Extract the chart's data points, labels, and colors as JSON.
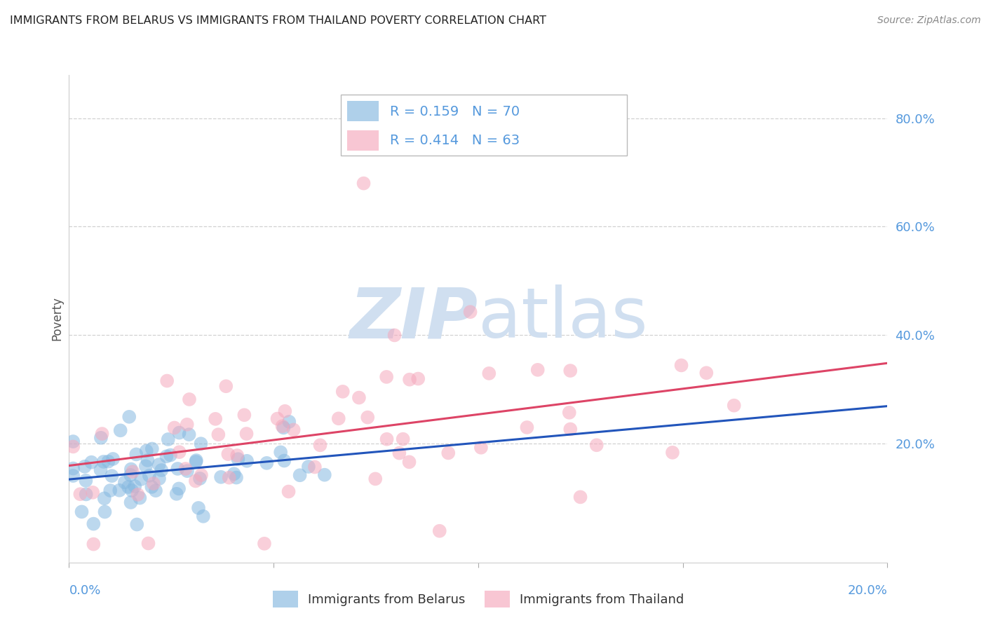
{
  "title": "IMMIGRANTS FROM BELARUS VS IMMIGRANTS FROM THAILAND POVERTY CORRELATION CHART",
  "source": "Source: ZipAtlas.com",
  "ylabel": "Poverty",
  "xlim": [
    0,
    0.2
  ],
  "ylim": [
    -0.02,
    0.88
  ],
  "grid_color": "#cccccc",
  "background_color": "#ffffff",
  "belarus_color": "#85b8e0",
  "thailand_color": "#f5a8bc",
  "belarus_line_color": "#2255bb",
  "thailand_line_color": "#dd4466",
  "belarus_R": 0.159,
  "belarus_N": 70,
  "thailand_R": 0.414,
  "thailand_N": 63,
  "legend_label_belarus": "Immigrants from Belarus",
  "legend_label_thailand": "Immigrants from Thailand",
  "watermark_zip": "ZIP",
  "watermark_atlas": "atlas",
  "watermark_color": "#d0dff0",
  "tick_color": "#5599dd",
  "title_color": "#222222",
  "source_color": "#888888",
  "ylabel_color": "#555555"
}
